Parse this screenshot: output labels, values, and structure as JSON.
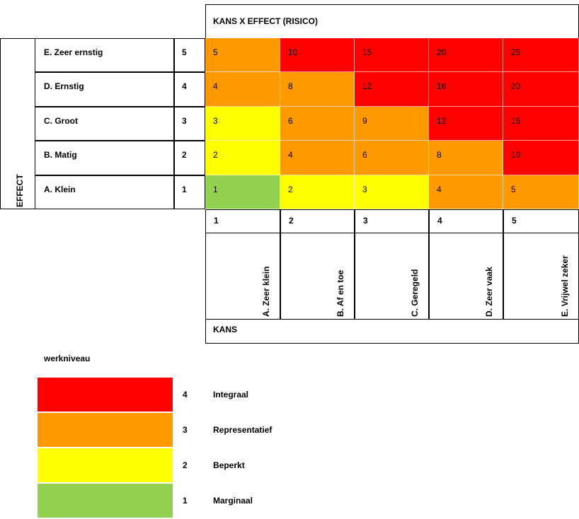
{
  "title": "KANS X EFFECT (RISICO)",
  "effect_label": "EFFECT",
  "kans_label": "KANS",
  "colors": {
    "red": "#ff0000",
    "orange": "#ff9900",
    "yellow": "#ffff00",
    "green": "#92d050"
  },
  "effect_rows": [
    {
      "label": "E. Zeer ernstig",
      "score": "5"
    },
    {
      "label": "D. Ernstig",
      "score": "4"
    },
    {
      "label": "C. Groot",
      "score": "3"
    },
    {
      "label": "B. Matig",
      "score": "2"
    },
    {
      "label": "A. Klein",
      "score": "1"
    }
  ],
  "matrix": [
    [
      {
        "v": "5",
        "c": "orange"
      },
      {
        "v": "10",
        "c": "red"
      },
      {
        "v": "15",
        "c": "red"
      },
      {
        "v": "20",
        "c": "red"
      },
      {
        "v": "25",
        "c": "red"
      }
    ],
    [
      {
        "v": "4",
        "c": "orange"
      },
      {
        "v": "8",
        "c": "orange"
      },
      {
        "v": "12",
        "c": "red"
      },
      {
        "v": "16",
        "c": "red"
      },
      {
        "v": "20",
        "c": "red"
      }
    ],
    [
      {
        "v": "3",
        "c": "yellow"
      },
      {
        "v": "6",
        "c": "orange"
      },
      {
        "v": "9",
        "c": "orange"
      },
      {
        "v": "12",
        "c": "red"
      },
      {
        "v": "15",
        "c": "red"
      }
    ],
    [
      {
        "v": "2",
        "c": "yellow"
      },
      {
        "v": "4",
        "c": "orange"
      },
      {
        "v": "6",
        "c": "orange"
      },
      {
        "v": "8",
        "c": "orange"
      },
      {
        "v": "10",
        "c": "red"
      }
    ],
    [
      {
        "v": "1",
        "c": "green"
      },
      {
        "v": "2",
        "c": "yellow"
      },
      {
        "v": "3",
        "c": "yellow"
      },
      {
        "v": "4",
        "c": "orange"
      },
      {
        "v": "5",
        "c": "orange"
      }
    ]
  ],
  "kans_columns": [
    {
      "score": "1",
      "label": "A. Zeer klein"
    },
    {
      "score": "2",
      "label": "B. Af en toe"
    },
    {
      "score": "3",
      "label": "C. Geregeld"
    },
    {
      "score": "4",
      "label": "D. Zeer vaak"
    },
    {
      "score": "5",
      "label": "E. Vrijwel zeker"
    }
  ],
  "legend": {
    "title": "werkniveau",
    "items": [
      {
        "level": "4",
        "label": "Integraal",
        "color": "red"
      },
      {
        "level": "3",
        "label": "Representatief",
        "color": "orange"
      },
      {
        "level": "2",
        "label": "Beperkt",
        "color": "yellow"
      },
      {
        "level": "1",
        "label": "Marginaal",
        "color": "green"
      }
    ]
  }
}
